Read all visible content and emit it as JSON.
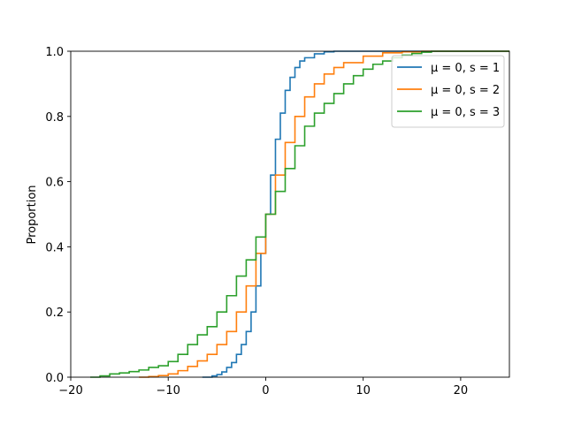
{
  "chart_data": {
    "type": "line",
    "title": "",
    "xlabel": "",
    "ylabel": "Proportion",
    "xlim": [
      -20,
      25
    ],
    "ylim": [
      0,
      1.0
    ],
    "x_ticks": [
      -20,
      -10,
      0,
      10,
      20
    ],
    "x_tick_labels": [
      "−20",
      "−10",
      "0",
      "10",
      "20"
    ],
    "y_ticks": [
      0.0,
      0.2,
      0.4,
      0.6,
      0.8,
      1.0
    ],
    "y_tick_labels": [
      "0.0",
      "0.2",
      "0.4",
      "0.6",
      "0.8",
      "1.0"
    ],
    "grid": false,
    "legend_position": "top-right",
    "series": [
      {
        "name": "μ = 0, s = 1",
        "color": "#1f77b4",
        "x": [
          -6.5,
          -5.5,
          -5,
          -4.5,
          -4,
          -3.5,
          -3,
          -2.5,
          -2,
          -1.5,
          -1,
          -0.5,
          0,
          0.5,
          1,
          1.5,
          2,
          2.5,
          3,
          3.5,
          4,
          5,
          6,
          7
        ],
        "y": [
          0.0,
          0.004,
          0.008,
          0.016,
          0.03,
          0.045,
          0.07,
          0.1,
          0.14,
          0.2,
          0.28,
          0.38,
          0.5,
          0.62,
          0.73,
          0.81,
          0.88,
          0.92,
          0.95,
          0.97,
          0.98,
          0.992,
          0.998,
          1.0
        ]
      },
      {
        "name": "μ = 0, s = 2",
        "color": "#ff7f0e",
        "x": [
          -13,
          -12,
          -11,
          -10,
          -9,
          -8,
          -7,
          -6,
          -5,
          -4,
          -3,
          -2,
          -1,
          0,
          1,
          2,
          3,
          4,
          5,
          6,
          7,
          8,
          10,
          12,
          14,
          16
        ],
        "y": [
          0.0,
          0.002,
          0.005,
          0.01,
          0.02,
          0.033,
          0.05,
          0.07,
          0.1,
          0.14,
          0.2,
          0.28,
          0.38,
          0.5,
          0.62,
          0.72,
          0.8,
          0.86,
          0.9,
          0.93,
          0.95,
          0.965,
          0.985,
          0.995,
          0.998,
          1.0
        ]
      },
      {
        "name": "μ = 0, s = 3",
        "color": "#2ca02c",
        "x": [
          -18,
          -17,
          -16,
          -15,
          -14,
          -13,
          -12,
          -11,
          -10,
          -9,
          -8,
          -7,
          -6,
          -5,
          -4,
          -3,
          -2,
          -1,
          0,
          1,
          2,
          3,
          4,
          5,
          6,
          7,
          8,
          9,
          10,
          11,
          12,
          13,
          14,
          15,
          16,
          17
        ],
        "y": [
          0.0,
          0.004,
          0.01,
          0.013,
          0.017,
          0.022,
          0.03,
          0.035,
          0.048,
          0.07,
          0.1,
          0.13,
          0.155,
          0.2,
          0.25,
          0.31,
          0.36,
          0.43,
          0.5,
          0.57,
          0.64,
          0.71,
          0.77,
          0.81,
          0.84,
          0.87,
          0.9,
          0.925,
          0.945,
          0.96,
          0.97,
          0.98,
          0.988,
          0.993,
          0.997,
          1.0
        ]
      }
    ]
  }
}
